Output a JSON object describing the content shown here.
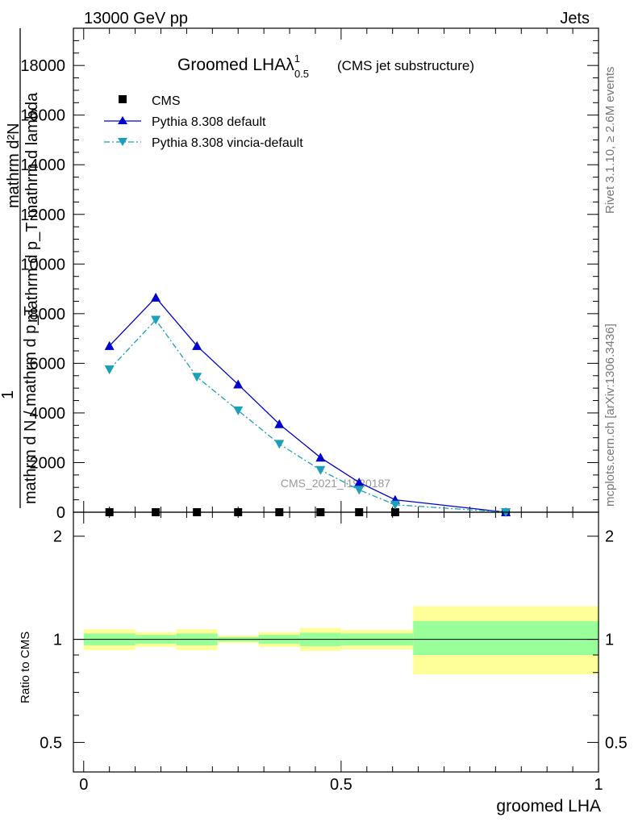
{
  "header": {
    "energy_label": "13000 GeV pp",
    "process_label": "Jets",
    "rivet_label": "Rivet 3.1.10, ≥ 2.6M events",
    "site_label": "mcplots.cern.ch [arXiv:1306.3436]",
    "analysis_label": "CMS_2021_I1920187"
  },
  "chart_data": [
    {
      "type": "line",
      "title": "Groomed LHAλ",
      "title_sup": "1",
      "title_sub": "0.5",
      "subtitle": "(CMS jet substructure)",
      "ylabel_num_top": "mathrm d²N",
      "ylabel_den_top": "mathrm d p_T mathrm d lambda",
      "ylabel_frac_top": "1",
      "ylabel_num_bottom": "mathrm d N / mathrm d p_T",
      "yticks": [
        "0",
        "2000",
        "4000",
        "6000",
        "8000",
        "10000",
        "12000",
        "14000",
        "16000",
        "18000"
      ],
      "ylim": [
        0,
        19500
      ],
      "xlim": [
        -0.02,
        1.0
      ],
      "legend_position": "top-left",
      "x": [
        0.05,
        0.14,
        0.22,
        0.3,
        0.38,
        0.46,
        0.535,
        0.605,
        0.82
      ],
      "series": [
        {
          "name": "CMS",
          "marker": "square",
          "color": "#000000",
          "values": [
            0,
            0,
            0,
            0,
            0,
            0,
            0,
            0,
            0
          ]
        },
        {
          "name": "Pythia 8.308 default",
          "marker": "triangle-up",
          "color": "#0000cc",
          "values": [
            6700,
            8650,
            6700,
            5150,
            3550,
            2200,
            1200,
            500,
            0
          ]
        },
        {
          "name": "Pythia 8.308 vincia-default",
          "marker": "triangle-down",
          "color": "#1aa0b8",
          "values": [
            5750,
            7750,
            5450,
            4100,
            2750,
            1700,
            900,
            300,
            0
          ]
        }
      ]
    },
    {
      "type": "area",
      "ylabel": "Ratio to CMS",
      "xlabel": "groomed LHA",
      "xticks": [
        "0",
        "0.5",
        "1"
      ],
      "yticks": [
        "0.5",
        "1",
        "2"
      ],
      "ylim": [
        0.41,
        2.35
      ],
      "bins": [
        {
          "lo": 0.0,
          "hi": 0.1,
          "green": [
            0.96,
            1.04
          ],
          "yellow": [
            0.93,
            1.07
          ]
        },
        {
          "lo": 0.1,
          "hi": 0.18,
          "green": [
            0.97,
            1.03
          ],
          "yellow": [
            0.95,
            1.05
          ]
        },
        {
          "lo": 0.18,
          "hi": 0.26,
          "green": [
            0.96,
            1.04
          ],
          "yellow": [
            0.93,
            1.07
          ]
        },
        {
          "lo": 0.26,
          "hi": 0.34,
          "green": [
            0.985,
            1.015
          ],
          "yellow": [
            0.975,
            1.025
          ]
        },
        {
          "lo": 0.34,
          "hi": 0.42,
          "green": [
            0.97,
            1.03
          ],
          "yellow": [
            0.95,
            1.05
          ]
        },
        {
          "lo": 0.42,
          "hi": 0.5,
          "green": [
            0.955,
            1.045
          ],
          "yellow": [
            0.925,
            1.08
          ]
        },
        {
          "lo": 0.5,
          "hi": 0.64,
          "green": [
            0.96,
            1.04
          ],
          "yellow": [
            0.935,
            1.065
          ]
        },
        {
          "lo": 0.64,
          "hi": 1.0,
          "green": [
            0.9,
            1.13
          ],
          "yellow": [
            0.79,
            1.25
          ]
        }
      ],
      "colors": {
        "green": "#99ff99",
        "yellow": "#ffff99"
      }
    }
  ]
}
